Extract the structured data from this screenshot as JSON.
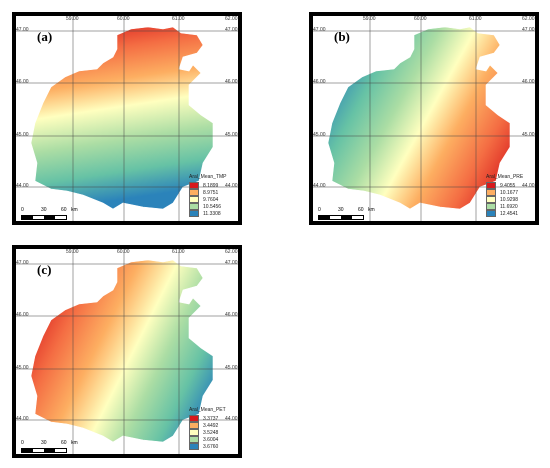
{
  "lon_ticks": [
    "59.00",
    "60.00",
    "61.00",
    "62.00"
  ],
  "lat_ticks": [
    "47.00",
    "46.00",
    "45.00",
    "44.00"
  ],
  "scale": {
    "labels": [
      "0",
      "30",
      "60"
    ],
    "unit": "km"
  },
  "panels": [
    {
      "letter": "(a)",
      "legend_title": "Aral_Mean_TMP",
      "legend": [
        {
          "label": "8.1899",
          "color": "#d7191c"
        },
        {
          "label": "8.9751",
          "color": "#fdae61"
        },
        {
          "label": "9.7604",
          "color": "#ffffbf"
        },
        {
          "label": "10.5456",
          "color": "#abdda4"
        },
        {
          "label": "11.3308",
          "color": "#2b83ba"
        }
      ]
    },
    {
      "letter": "(b)",
      "legend_title": "Aral_Mean_PRE",
      "legend": [
        {
          "label": "9.4055",
          "color": "#d7191c"
        },
        {
          "label": "10.1677",
          "color": "#fdae61"
        },
        {
          "label": "10.9298",
          "color": "#ffffbf"
        },
        {
          "label": "11.6920",
          "color": "#abdda4"
        },
        {
          "label": "12.4541",
          "color": "#2b83ba"
        }
      ]
    },
    {
      "letter": "(c)",
      "legend_title": "Aral_Mean_PET",
      "legend": [
        {
          "label": "3.3737",
          "color": "#d7191c"
        },
        {
          "label": "3.4492",
          "color": "#fdae61"
        },
        {
          "label": "3.5248",
          "color": "#ffffbf"
        },
        {
          "label": "3.6004",
          "color": "#abdda4"
        },
        {
          "label": "3.6760",
          "color": "#2b83ba"
        }
      ]
    }
  ]
}
